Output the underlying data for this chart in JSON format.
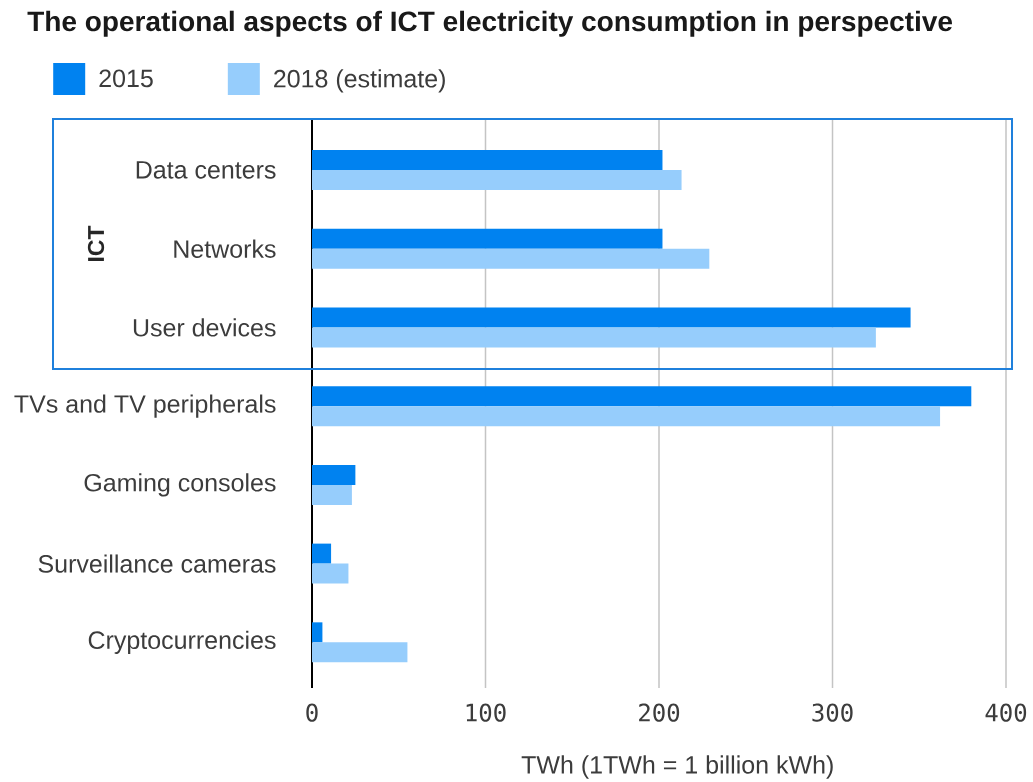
{
  "chart_data": {
    "type": "bar",
    "orientation": "horizontal",
    "title": "The operational aspects of ICT electricity consumption in perspective",
    "xlabel": "TWh (1TWh = 1 billion kWh)",
    "categories": [
      "Data centers",
      "Networks",
      "User devices",
      "TVs and TV peripherals",
      "Gaming consoles",
      "Surveillance cameras",
      "Cryptocurrencies"
    ],
    "series": [
      {
        "name": "2015",
        "color": "#0082f0",
        "values": [
          202,
          202,
          345,
          380,
          25,
          11,
          6
        ]
      },
      {
        "name": "2018 (estimate)",
        "color": "#96cdfc",
        "values": [
          213,
          229,
          325,
          362,
          23,
          21,
          55
        ]
      }
    ],
    "xlim": [
      0,
      400
    ],
    "xticks": [
      0,
      100,
      200,
      300,
      400
    ],
    "grid": "x",
    "legend": "top left",
    "annotations": [
      "ICT"
    ]
  }
}
